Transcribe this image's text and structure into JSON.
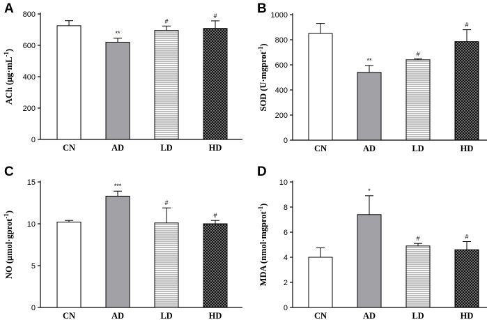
{
  "figure": {
    "colors": {
      "CN": "#ffffff",
      "AD": "#a1a1a6",
      "LD": "pattern-stripes",
      "HD": "pattern-dots",
      "stroke": "#000000"
    }
  },
  "chart_data": [
    {
      "panel": "A",
      "type": "bar",
      "categories": [
        "CN",
        "AD",
        "LD",
        "HD"
      ],
      "values": [
        725,
        620,
        695,
        708
      ],
      "errors": [
        32,
        25,
        28,
        48
      ],
      "significance": [
        "",
        "**",
        "#",
        "#"
      ],
      "ylabel": "ACh (μg·mL",
      "ylabel_sup": "-1",
      "ylabel_end": ")",
      "ylim": [
        0,
        800
      ],
      "yticks": [
        0,
        200,
        400,
        600,
        800
      ]
    },
    {
      "panel": "B",
      "type": "bar",
      "categories": [
        "CN",
        "AD",
        "LD",
        "HD"
      ],
      "values": [
        850,
        540,
        640,
        785
      ],
      "errors": [
        80,
        55,
        8,
        95
      ],
      "significance": [
        "",
        "**",
        "#",
        "#"
      ],
      "ylabel": "SOD (U·mgprot",
      "ylabel_sup": "-1",
      "ylabel_end": ")",
      "ylim": [
        0,
        1000
      ],
      "yticks": [
        0,
        200,
        400,
        600,
        800,
        1000
      ]
    },
    {
      "panel": "C",
      "type": "bar",
      "categories": [
        "CN",
        "AD",
        "LD",
        "HD"
      ],
      "values": [
        10.2,
        13.3,
        10.1,
        10.0
      ],
      "errors": [
        0.2,
        0.6,
        1.8,
        0.4
      ],
      "significance": [
        "",
        "***",
        "#",
        "#"
      ],
      "ylabel": "NO (μmol·gprot",
      "ylabel_sup": "-1",
      "ylabel_end": ")",
      "ylim": [
        0,
        15
      ],
      "yticks": [
        0,
        5,
        10,
        15
      ]
    },
    {
      "panel": "D",
      "type": "bar",
      "categories": [
        "CN",
        "AD",
        "LD",
        "HD"
      ],
      "values": [
        4.0,
        7.4,
        4.9,
        4.6
      ],
      "errors": [
        0.75,
        1.5,
        0.2,
        0.65
      ],
      "significance": [
        "",
        "*",
        "#",
        "#"
      ],
      "ylabel": "MDA (nmol·mgprot",
      "ylabel_sup": "-1",
      "ylabel_end": ")",
      "ylim": [
        0,
        10
      ],
      "yticks": [
        0,
        2,
        4,
        6,
        8,
        10
      ]
    }
  ]
}
